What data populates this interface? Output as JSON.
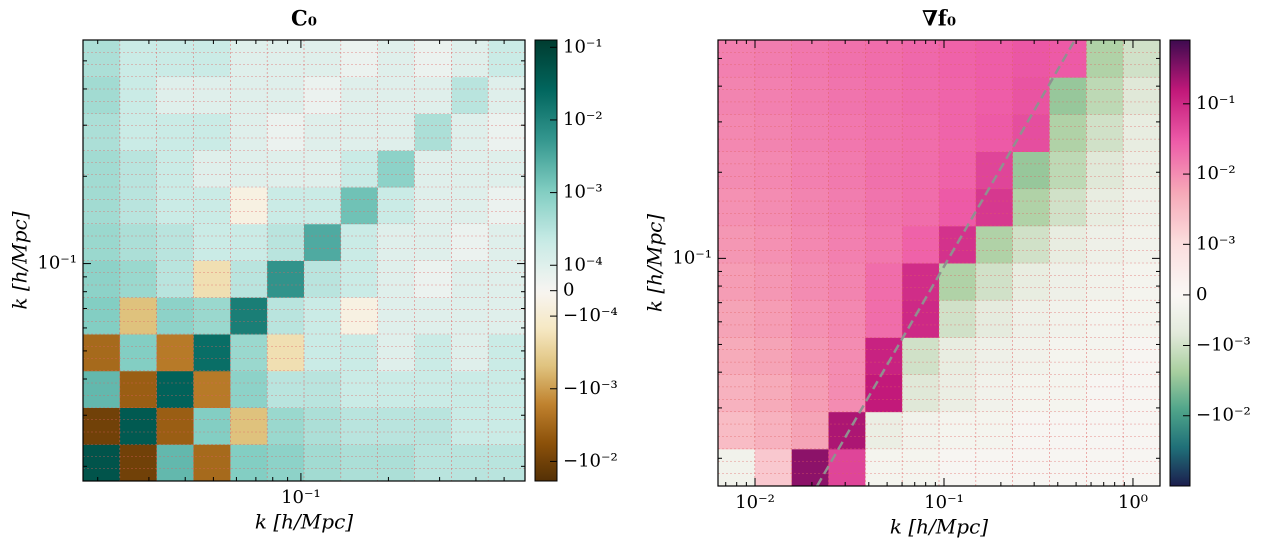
{
  "chart_data": [
    {
      "type": "heatmap",
      "title": "C₀",
      "xlabel": "k [h/Mpc]",
      "ylabel": "k [h/Mpc]",
      "xscale": "log",
      "yscale": "log",
      "xlim": [
        0.0178,
        0.59
      ],
      "ylim": [
        0.0178,
        0.59
      ],
      "xticks": [
        {
          "value": 0.1,
          "label": "10⁻¹"
        }
      ],
      "yticks": [
        {
          "value": 0.1,
          "label": "10⁻¹"
        }
      ],
      "grid_color": "#e06060",
      "values": [
        [
          0.05,
          -0.01,
          0.002,
          -0.003,
          0.001,
          0.0008,
          0.0005,
          0.0004,
          0.0004,
          0.0003,
          0.0003,
          0.0003
        ],
        [
          -0.01,
          0.04,
          -0.004,
          0.001,
          -0.0005,
          0.0006,
          0.0004,
          0.0003,
          0.0003,
          0.0003,
          0.0002,
          0.0002
        ],
        [
          0.002,
          -0.004,
          0.03,
          -0.002,
          0.0008,
          0.0003,
          0.0003,
          0.0002,
          0.0002,
          0.0002,
          0.0002,
          0.0002
        ],
        [
          -0.003,
          0.001,
          -0.002,
          0.02,
          0.0006,
          -0.0002,
          0.0002,
          0.0002,
          0.0001,
          0.0002,
          0.0001,
          0.0002
        ],
        [
          0.001,
          -0.0005,
          0.0008,
          0.0006,
          0.012,
          0.0003,
          0.0002,
          -5e-05,
          0.0001,
          0.0001,
          0.0001,
          0.0001
        ],
        [
          0.0008,
          0.0006,
          0.0003,
          -0.0002,
          0.0003,
          0.006,
          0.0003,
          0.0002,
          0.0001,
          5e-05,
          0.0001,
          0.0001
        ],
        [
          0.0006,
          0.0004,
          0.0003,
          0.0002,
          0.0002,
          0.0003,
          0.003,
          0.0002,
          0.0001,
          0.0001,
          5e-05,
          0.0001
        ],
        [
          0.0005,
          0.0003,
          0.0002,
          0.0002,
          -5e-05,
          0.0002,
          0.0002,
          0.0015,
          0.0002,
          0.0001,
          0.0001,
          5e-05
        ],
        [
          0.0005,
          0.0003,
          0.0002,
          0.0001,
          0.0001,
          0.0001,
          0.0001,
          0.0002,
          0.0008,
          0.0001,
          0.0001,
          0.0001
        ],
        [
          0.0004,
          0.0002,
          0.0002,
          0.0002,
          0.0001,
          5e-05,
          0.0001,
          0.0001,
          0.0001,
          0.0004,
          0.0001,
          5e-05
        ],
        [
          0.0005,
          0.0002,
          0.0001,
          0.0001,
          0.0001,
          0.0001,
          5e-05,
          0.0001,
          0.0001,
          0.0001,
          0.0003,
          0.0001
        ],
        [
          0.0004,
          0.0002,
          0.0002,
          0.0002,
          0.0001,
          0.0001,
          0.0001,
          5e-05,
          0.0001,
          5e-05,
          0.0001,
          0.0002
        ]
      ],
      "colorbar": {
        "lim": [
          -0.0186,
          0.126
        ],
        "linthresh": 0.0001,
        "linscale": 0.35,
        "colormap_negative": [
          "#543005",
          "#8c510a",
          "#bf812d",
          "#dfc27d",
          "#f6e8c3",
          "#f7f5f2"
        ],
        "colormap_positive": [
          "#f7f5f2",
          "#c7eae5",
          "#80cdc1",
          "#35978f",
          "#01665e",
          "#003c30"
        ],
        "ticks": [
          {
            "value": 0.1,
            "label": "10⁻¹"
          },
          {
            "value": 0.01,
            "label": "10⁻²"
          },
          {
            "value": 0.001,
            "label": "10⁻³"
          },
          {
            "value": 0.0001,
            "label": "10⁻⁴"
          },
          0,
          {
            "value": -0.0001,
            "label": "−10⁻⁴"
          },
          {
            "value": -0.001,
            "label": "−10⁻³"
          },
          {
            "value": -0.01,
            "label": "−10⁻²"
          }
        ]
      }
    },
    {
      "type": "heatmap",
      "title": "∇f₀",
      "xlabel": "k [h/Mpc]",
      "ylabel": "k [h/Mpc]",
      "xscale": "log",
      "yscale": "log",
      "xlim": [
        0.00637,
        1.39
      ],
      "ylim": [
        0.016,
        0.58
      ],
      "xticks": [
        {
          "value": 0.01,
          "label": "10⁻²"
        },
        {
          "value": 0.1,
          "label": "10⁻¹"
        },
        {
          "value": 1,
          "label": "10⁰"
        }
      ],
      "yticks": [
        {
          "value": 0.1,
          "label": "10⁻¹"
        }
      ],
      "grid_color": "#e06060",
      "values": [
        [
          -0.0003,
          0.002,
          0.3,
          0.05,
          -0.0002,
          -0.0002,
          -0.0001,
          -0.0001,
          -0.0001,
          -0.0001,
          -0.0001,
          -0.0001
        ],
        [
          0.003,
          0.004,
          0.006,
          0.2,
          -0.0005,
          -0.0003,
          -0.0002,
          -0.0002,
          -0.0001,
          -0.0001,
          -0.0001,
          -0.0001
        ],
        [
          0.004,
          0.005,
          0.007,
          0.01,
          0.15,
          -0.0008,
          -0.0005,
          -0.0003,
          -0.0002,
          -0.0002,
          -0.0001,
          -0.0001
        ],
        [
          0.005,
          0.006,
          0.008,
          0.01,
          0.12,
          -0.001,
          -0.0006,
          -0.0004,
          -0.0003,
          -0.0002,
          -0.0002,
          -0.0001
        ],
        [
          0.006,
          0.007,
          0.009,
          0.011,
          0.02,
          0.1,
          -0.001,
          -0.0007,
          -0.0004,
          -0.0003,
          -0.0002,
          -0.0002
        ],
        [
          0.007,
          0.008,
          0.01,
          0.012,
          0.02,
          0.09,
          -0.002,
          -0.001,
          -0.0006,
          -0.0004,
          -0.0003,
          -0.0002
        ],
        [
          0.008,
          0.009,
          0.011,
          0.013,
          0.016,
          0.025,
          0.08,
          -0.002,
          -0.001,
          -0.0006,
          -0.0004,
          -0.0003
        ],
        [
          0.009,
          0.01,
          0.012,
          0.014,
          0.017,
          0.02,
          0.03,
          0.07,
          -0.002,
          -0.001,
          -0.0006,
          -0.0004
        ],
        [
          0.01,
          0.011,
          0.013,
          0.015,
          0.018,
          0.02,
          0.025,
          0.05,
          -0.003,
          -0.0015,
          -0.0008,
          -0.0005
        ],
        [
          0.011,
          0.012,
          0.014,
          0.016,
          0.018,
          0.02,
          0.024,
          0.03,
          0.04,
          -0.002,
          -0.001,
          -0.0006
        ],
        [
          0.012,
          0.013,
          0.015,
          0.017,
          0.019,
          0.021,
          0.024,
          0.028,
          0.035,
          -0.003,
          -0.0015,
          -0.0008
        ],
        [
          0.013,
          0.014,
          0.016,
          0.018,
          0.02,
          0.022,
          0.025,
          0.028,
          0.032,
          0.03,
          -0.002,
          -0.001
        ]
      ],
      "line": {
        "x": [
          0.0213,
          0.493
        ],
        "y": [
          0.016,
          0.58
        ],
        "color": "#909090",
        "dashed": true
      },
      "colorbar": {
        "lim": [
          -0.1,
          0.81
        ],
        "linthresh": 0.001,
        "linscale": 0.72,
        "colormap_negative": [
          "#1c1d4d",
          "#1f6f78",
          "#4fa58a",
          "#a9cf9f",
          "#e3eadc",
          "#faf7f5"
        ],
        "colormap_positive": [
          "#faf7f5",
          "#fbdede",
          "#f6a9b8",
          "#ee5ca8",
          "#c2187a",
          "#3d0a4f"
        ],
        "ticks": [
          {
            "value": 0.1,
            "label": "10⁻¹"
          },
          {
            "value": 0.01,
            "label": "10⁻²"
          },
          {
            "value": 0.001,
            "label": "10⁻³"
          },
          0,
          {
            "value": -0.001,
            "label": "−10⁻³"
          },
          {
            "value": -0.01,
            "label": "−10⁻²"
          }
        ]
      }
    }
  ]
}
